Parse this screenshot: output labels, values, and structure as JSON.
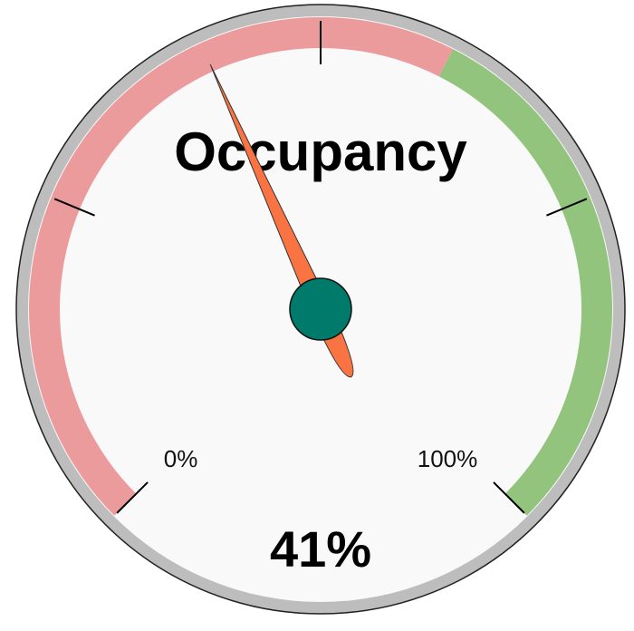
{
  "chart_data": {
    "type": "gauge",
    "title": "Occupancy",
    "value": 41,
    "value_label": "41%",
    "ylim": [
      0,
      100
    ],
    "yticks": [
      {
        "value": 0,
        "label": "0%"
      },
      {
        "value": 100,
        "label": "100%"
      }
    ],
    "minor_ticks": [
      25,
      50,
      75
    ],
    "bands": [
      {
        "from": 0,
        "to": 60,
        "color": "#eb9b9b"
      },
      {
        "from": 60,
        "to": 100,
        "color": "#93c47d"
      }
    ],
    "needle_color": "#f97442",
    "hub_color": "#007a6a"
  }
}
